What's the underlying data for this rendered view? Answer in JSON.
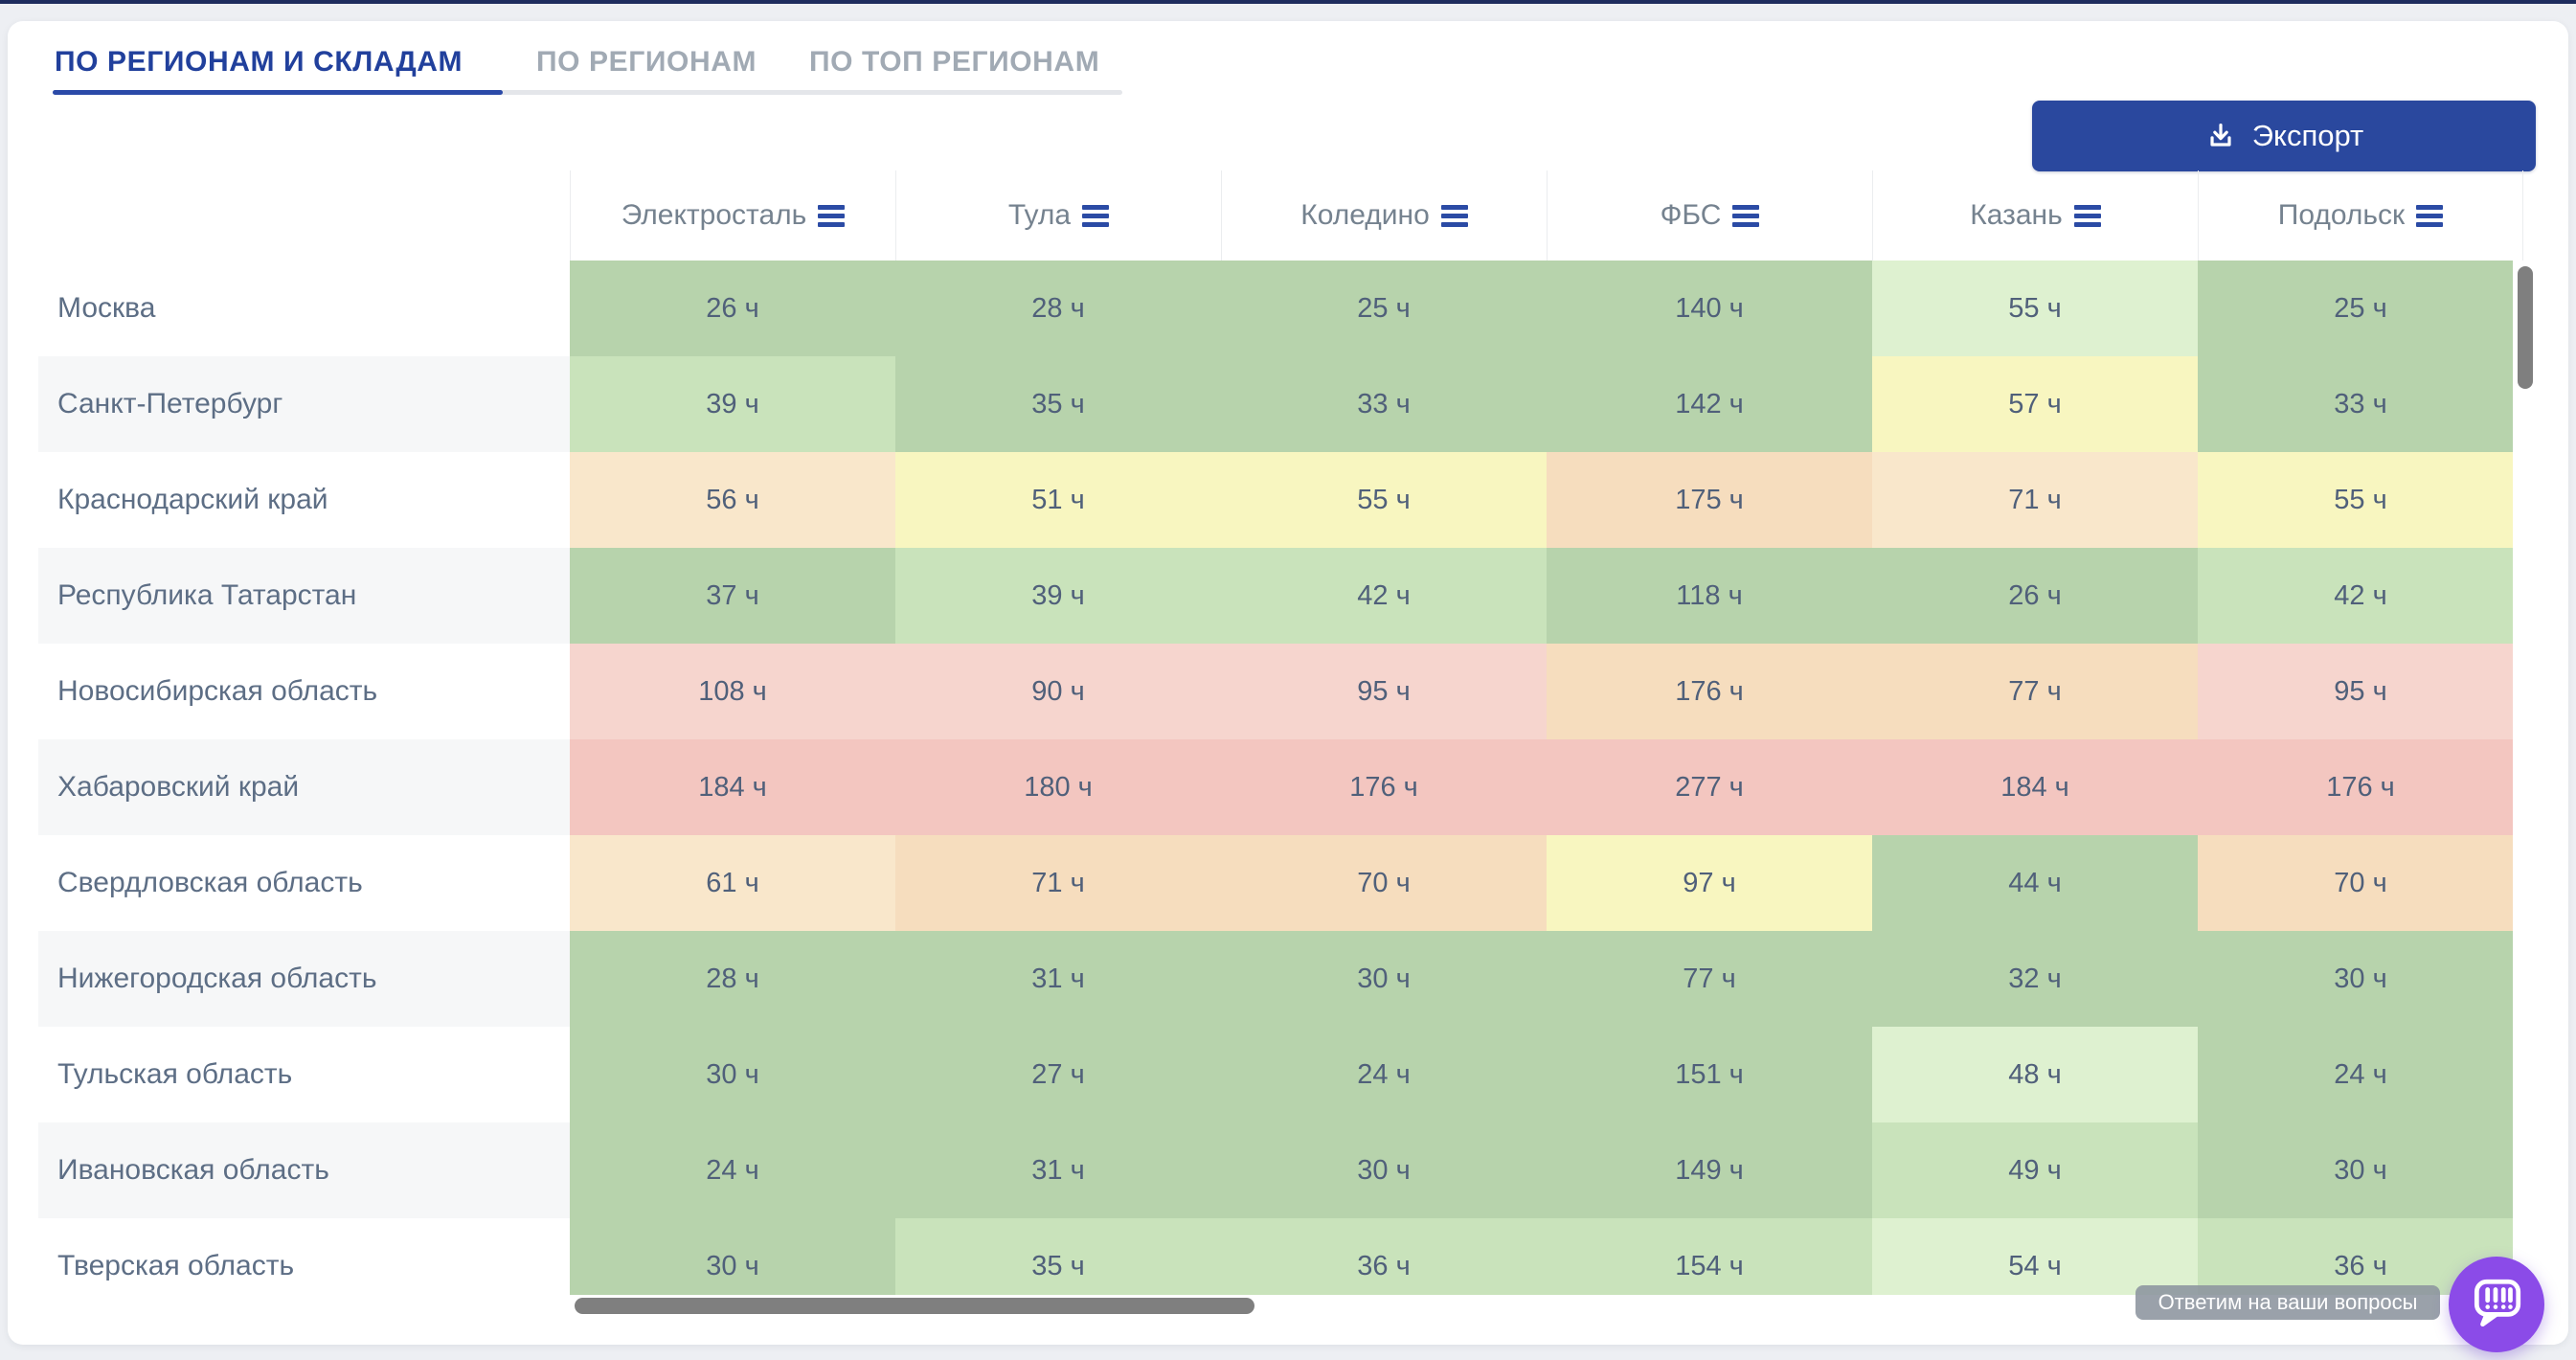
{
  "tabs": {
    "items": [
      {
        "label": "ПО РЕГИОНАМ И СКЛАДАМ",
        "active": true
      },
      {
        "label": "ПО РЕГИОНАМ",
        "active": false
      },
      {
        "label": "ПО ТОП РЕГИОНАМ",
        "active": false
      }
    ]
  },
  "toolbar": {
    "export_label": "Экспорт",
    "export_icon": "download-icon"
  },
  "table": {
    "unit": "ч",
    "columns": [
      {
        "label": "Электросталь",
        "icon": "menu-icon"
      },
      {
        "label": "Тула",
        "icon": "menu-icon"
      },
      {
        "label": "Коледино",
        "icon": "menu-icon"
      },
      {
        "label": "ФБС",
        "icon": "menu-icon"
      },
      {
        "label": "Казань",
        "icon": "menu-icon"
      },
      {
        "label": "Подольск",
        "icon": "menu-icon"
      }
    ],
    "rows": [
      {
        "region": "Москва",
        "values": [
          26,
          28,
          25,
          140,
          55,
          25
        ],
        "colors": [
          "g1",
          "g1",
          "g1",
          "g1",
          "g3",
          "g1"
        ]
      },
      {
        "region": "Санкт-Петербург",
        "values": [
          39,
          35,
          33,
          142,
          57,
          33
        ],
        "colors": [
          "g2",
          "g1",
          "g1",
          "g1",
          "y1",
          "g1"
        ]
      },
      {
        "region": "Краснодарский край",
        "values": [
          56,
          51,
          55,
          175,
          71,
          55
        ],
        "colors": [
          "o1",
          "y1",
          "y1",
          "o2",
          "o1",
          "y1"
        ]
      },
      {
        "region": "Республика Татарстан",
        "values": [
          37,
          39,
          42,
          118,
          26,
          42
        ],
        "colors": [
          "g1",
          "g2",
          "g2",
          "g1",
          "g1",
          "g2"
        ]
      },
      {
        "region": "Новосибирская область",
        "values": [
          108,
          90,
          95,
          176,
          77,
          95
        ],
        "colors": [
          "p1",
          "p1",
          "p1",
          "o2",
          "o2",
          "p1"
        ]
      },
      {
        "region": "Хабаровский край",
        "values": [
          184,
          180,
          176,
          277,
          184,
          176
        ],
        "colors": [
          "r1",
          "r1",
          "r1",
          "r1",
          "r1",
          "r1"
        ]
      },
      {
        "region": "Свердловская область",
        "values": [
          61,
          71,
          70,
          97,
          44,
          70
        ],
        "colors": [
          "o1",
          "o2",
          "o2",
          "y1",
          "g1",
          "o2"
        ]
      },
      {
        "region": "Нижегородская область",
        "values": [
          28,
          31,
          30,
          77,
          32,
          30
        ],
        "colors": [
          "g1",
          "g1",
          "g1",
          "g1",
          "g1",
          "g1"
        ]
      },
      {
        "region": "Тульская область",
        "values": [
          30,
          27,
          24,
          151,
          48,
          24
        ],
        "colors": [
          "g1",
          "g1",
          "g1",
          "g1",
          "g3",
          "g1"
        ]
      },
      {
        "region": "Ивановская область",
        "values": [
          24,
          31,
          30,
          149,
          49,
          30
        ],
        "colors": [
          "g1",
          "g1",
          "g1",
          "g1",
          "g2",
          "g1"
        ]
      },
      {
        "region": "Тверская область",
        "values": [
          30,
          35,
          36,
          154,
          54,
          36
        ],
        "colors": [
          "g1",
          "g2",
          "g2",
          "g2",
          "g3",
          "g2"
        ]
      }
    ]
  },
  "heatmap_colors": {
    "g1": "#b7d3ac",
    "g2": "#c9e3bb",
    "g3": "#def1d0",
    "y1": "#f8f6c0",
    "o1": "#f9e7cb",
    "o2": "#f6ddbe",
    "p1": "#f6d5ce",
    "r1": "#f3c6c0"
  },
  "accent": {
    "brand_blue": "#2a489e",
    "active_tab_blue": "#21409c",
    "menu_icon_blue": "#2b4ba5",
    "chat_purple": "#8b4be8"
  },
  "chat": {
    "tooltip": "Ответим на ваши вопросы",
    "button_icon": "chat-icon"
  }
}
